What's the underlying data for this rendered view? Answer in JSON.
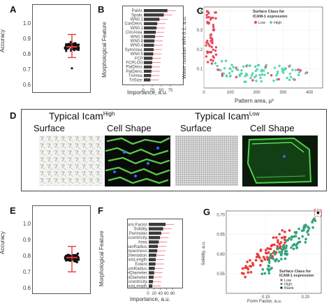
{
  "panels": {
    "A": {
      "letter": "A",
      "ylabel": "Accuracy",
      "yticks": [
        "1.0",
        "0.9",
        "0.8",
        "0.7",
        "0.6"
      ]
    },
    "B": {
      "letter": "B",
      "ylabel": "Morphological Feature",
      "xlabel": "Importance, a.u."
    },
    "C": {
      "letter": "C",
      "ylabel": "Wave number WN 0.1, a.u.",
      "xlabel": "Pattern area, µ²",
      "legend_title_1": "Surface Class for",
      "legend_title_2": "ICAM-1 expression",
      "legend_low": "Low",
      "legend_high": "High"
    },
    "D": {
      "letter": "D",
      "left_heading": "Typical Icam",
      "left_sup": "High",
      "right_heading": "Typical Icam",
      "right_sup": "Low",
      "left_surface": "Surface",
      "left_shape": "Cell Shape",
      "right_surface": "Surface",
      "right_shape": "Cell Shape"
    },
    "E": {
      "letter": "E",
      "ylabel": "Accuracy",
      "yticks": [
        "1.0",
        "0.9",
        "0.8",
        "0.7",
        "0.6"
      ]
    },
    "F": {
      "letter": "F",
      "ylabel": "Morphological Feature",
      "xlabel": "Importance, a.u."
    },
    "G": {
      "letter": "G",
      "ylabel": "Solidity, a.u.",
      "xlabel": "Form Factor, a.u.",
      "legend_title_1": "Surface Class for",
      "legend_title_2": "ICAM-1 expression",
      "legend_low": "Low",
      "legend_high": "High",
      "legend_blank": "Blank"
    }
  },
  "chart_data": [
    {
      "id": "A",
      "type": "scatter",
      "title": "",
      "xlabel": "",
      "ylabel": "Accuracy",
      "ylim": [
        0.6,
        1.05
      ],
      "summary": {
        "mean": 0.85,
        "spread_low": 0.78,
        "spread_high": 0.93,
        "outlier": 0.71
      }
    },
    {
      "id": "B",
      "type": "bar",
      "xlabel": "Importance, a.u.",
      "ylabel": "Morphological Feature",
      "xlim": [
        0,
        100
      ],
      "xticks": [
        0,
        25,
        50,
        75
      ],
      "categories": [
        "PatAr.",
        "Spokr.",
        "WN0.1",
        "ConDens.",
        "WN0.1",
        "CircArea.",
        "WN0.3",
        "WN0.8",
        "WN0.4",
        "SymArea.",
        "WN0.5",
        "FCP",
        "FCPLOG",
        "PatDens.",
        "PatDens.",
        "TriArea.",
        "TriSize."
      ],
      "values": [
        88,
        78,
        66,
        60,
        58,
        56,
        54,
        52,
        51,
        50,
        49,
        47,
        46,
        45,
        44,
        43,
        41
      ]
    },
    {
      "id": "C",
      "type": "scatter",
      "xlabel": "Pattern area, µ²",
      "ylabel": "Wave number WN 0.1, a.u.",
      "xlim": [
        0,
        450
      ],
      "ylim": [
        0,
        0.42
      ],
      "xticks": [
        0,
        100,
        200,
        300,
        400
      ],
      "yticks": [
        0.1,
        0.2,
        0.3,
        0.4
      ],
      "series": [
        {
          "name": "Low",
          "color": "#e8485a"
        },
        {
          "name": "High",
          "color": "#5cd3b0"
        }
      ]
    },
    {
      "id": "E",
      "type": "scatter",
      "xlabel": "",
      "ylabel": "Accuracy",
      "ylim": [
        0.6,
        1.05
      ],
      "summary": {
        "mean": 0.79,
        "spread_low": 0.7,
        "spread_high": 0.86
      }
    },
    {
      "id": "F",
      "type": "bar",
      "xlabel": "Importance, a.u.",
      "ylabel": "Morphological Feature",
      "xlim": [
        0,
        100
      ],
      "xticks": [
        0,
        20,
        40,
        60,
        80
      ],
      "categories": [
        "Form.Factor.",
        "Solidity.",
        "Perimeter.",
        "Eccentricity.",
        "Area.",
        "MeanRadius.",
        "Compactness.",
        "Orientation.",
        "MajorAxisLength.",
        "Extent.",
        "MaximumRadius.",
        "MaxFeretDiameter.",
        "MinFeretDiameter.",
        "Eccentricity.",
        "MinorAxisLength."
      ],
      "values": [
        82,
        74,
        68,
        64,
        60,
        57,
        55,
        52,
        50,
        49,
        47,
        45,
        43,
        41,
        39
      ]
    },
    {
      "id": "G",
      "type": "scatter",
      "xlabel": "Form Factor, a.u.",
      "ylabel": "Solidity, a.u.",
      "xlim": [
        0.1,
        0.22
      ],
      "ylim": [
        0.5,
        0.71
      ],
      "xticks": [
        0.15,
        0.2
      ],
      "yticks": [
        0.55,
        0.6,
        0.65,
        0.7
      ],
      "series": [
        {
          "name": "Low",
          "color": "#e83a3a"
        },
        {
          "name": "High",
          "color": "#2fa37a"
        },
        {
          "name": "Blank",
          "color": "#111111"
        }
      ]
    }
  ]
}
